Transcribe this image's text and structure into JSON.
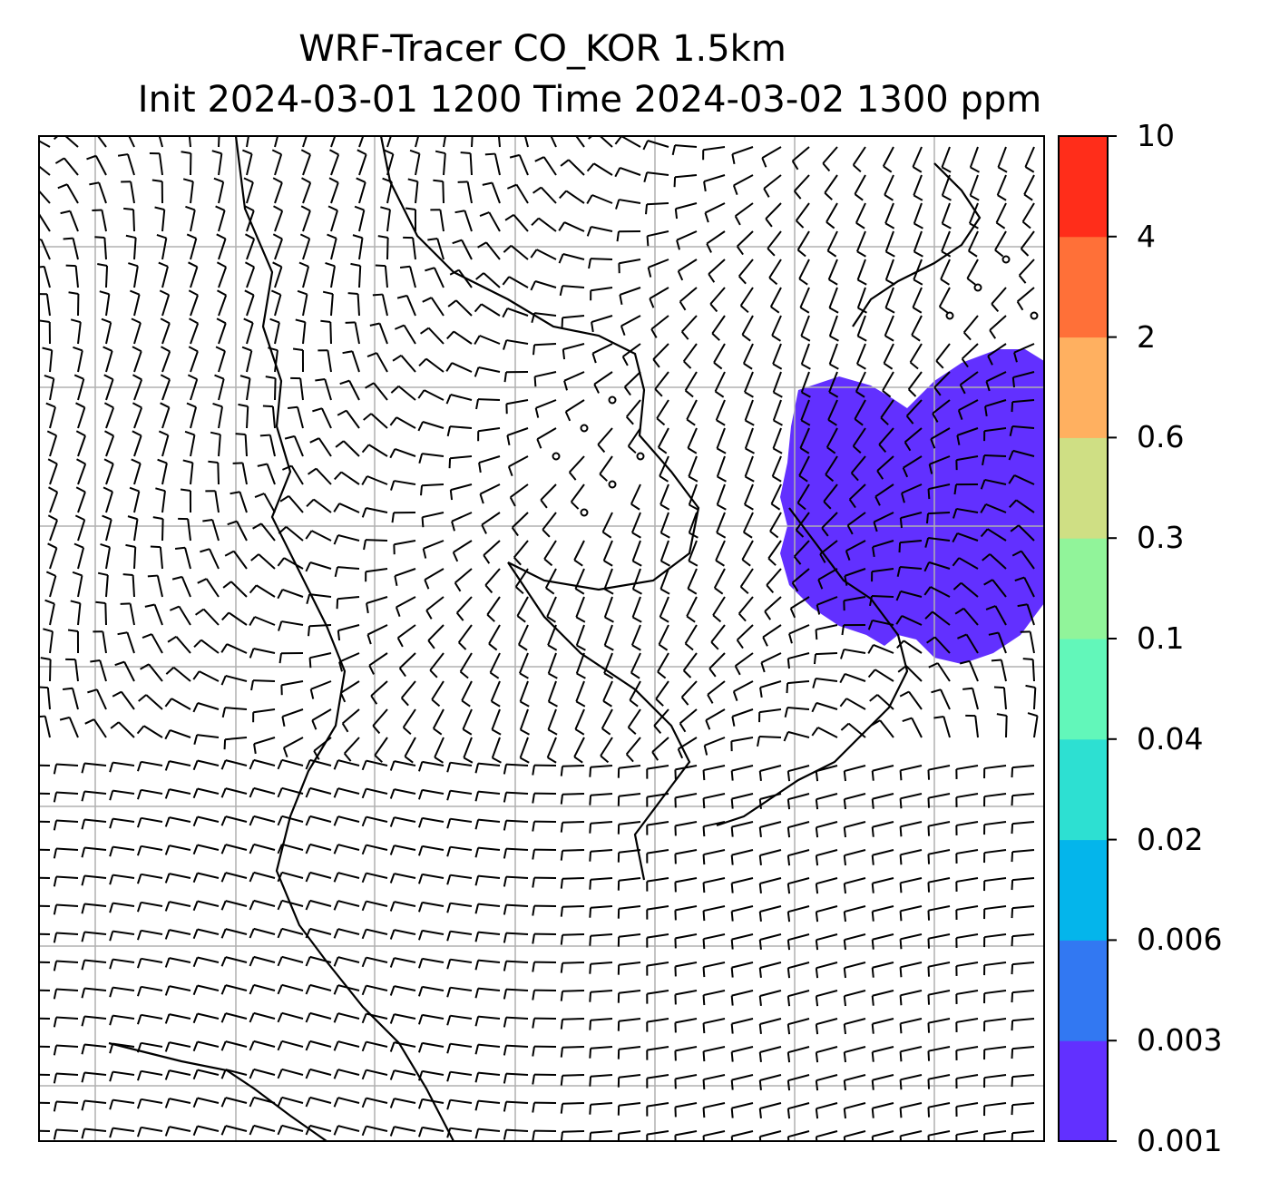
{
  "title": {
    "line1": "WRF-Tracer CO_KOR 1.5km",
    "line2": "Init 2024-03-01 1200 Time 2024-03-02 1300 ppm"
  },
  "colorbar": {
    "levels": [
      "0.001",
      "0.003",
      "0.006",
      "0.02",
      "0.04",
      "0.1",
      "0.3",
      "0.6",
      "2",
      "4",
      "10"
    ],
    "colors": [
      "#6230ff",
      "#3278f2",
      "#04b5eb",
      "#2de0d2",
      "#62f7ba",
      "#91f49a",
      "#cfdf84",
      "#ffb060",
      "#ff7038",
      "#ff2d1a"
    ]
  },
  "plume": {
    "color": "#6230ff",
    "value_range": "0.001-0.003"
  },
  "colors": {
    "grid": "#b0b0b0",
    "barbs": "#000000",
    "coast": "#000000"
  }
}
